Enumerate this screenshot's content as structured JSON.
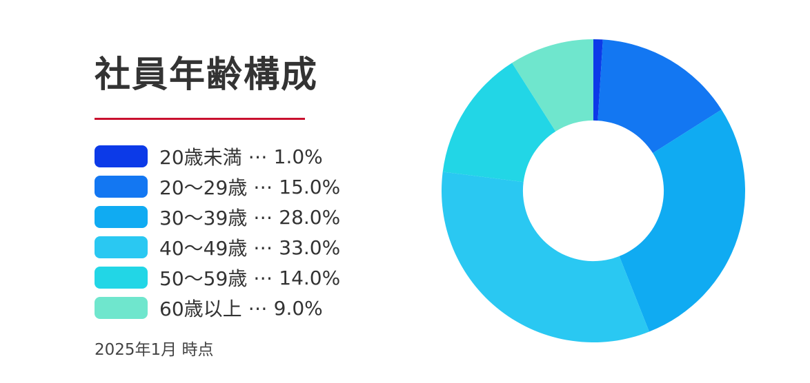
{
  "title": "社員年齢構成",
  "footnote": "2025年1月 時点",
  "accent_color": "#C9102E",
  "legend": {
    "separator": "⋯",
    "items": [
      {
        "label": "20歳未満",
        "percent_text": "1.0%"
      },
      {
        "label": "20〜29歳",
        "percent_text": "15.0%"
      },
      {
        "label": "30〜39歳",
        "percent_text": "28.0%"
      },
      {
        "label": "40〜49歳",
        "percent_text": "33.0%"
      },
      {
        "label": "50〜59歳",
        "percent_text": "14.0%"
      },
      {
        "label": "60歳以上",
        "percent_text": "9.0%"
      }
    ]
  },
  "chart_data": {
    "type": "pie",
    "subtype": "donut",
    "title": "社員年齢構成",
    "annotation": "2025年1月 時点",
    "categories": [
      "20歳未満",
      "20〜29歳",
      "30〜39歳",
      "40〜49歳",
      "50〜59歳",
      "60歳以上"
    ],
    "values": [
      1.0,
      15.0,
      28.0,
      33.0,
      14.0,
      9.0
    ],
    "unit": "%",
    "colors": [
      "#0C3AE8",
      "#1377F2",
      "#10ABF2",
      "#2AC8F2",
      "#22D6E6",
      "#6FE6CD"
    ],
    "start_angle_deg": 0,
    "direction": "clockwise",
    "inner_radius_ratio": 0.464,
    "legend_position": "left",
    "grid": false
  }
}
